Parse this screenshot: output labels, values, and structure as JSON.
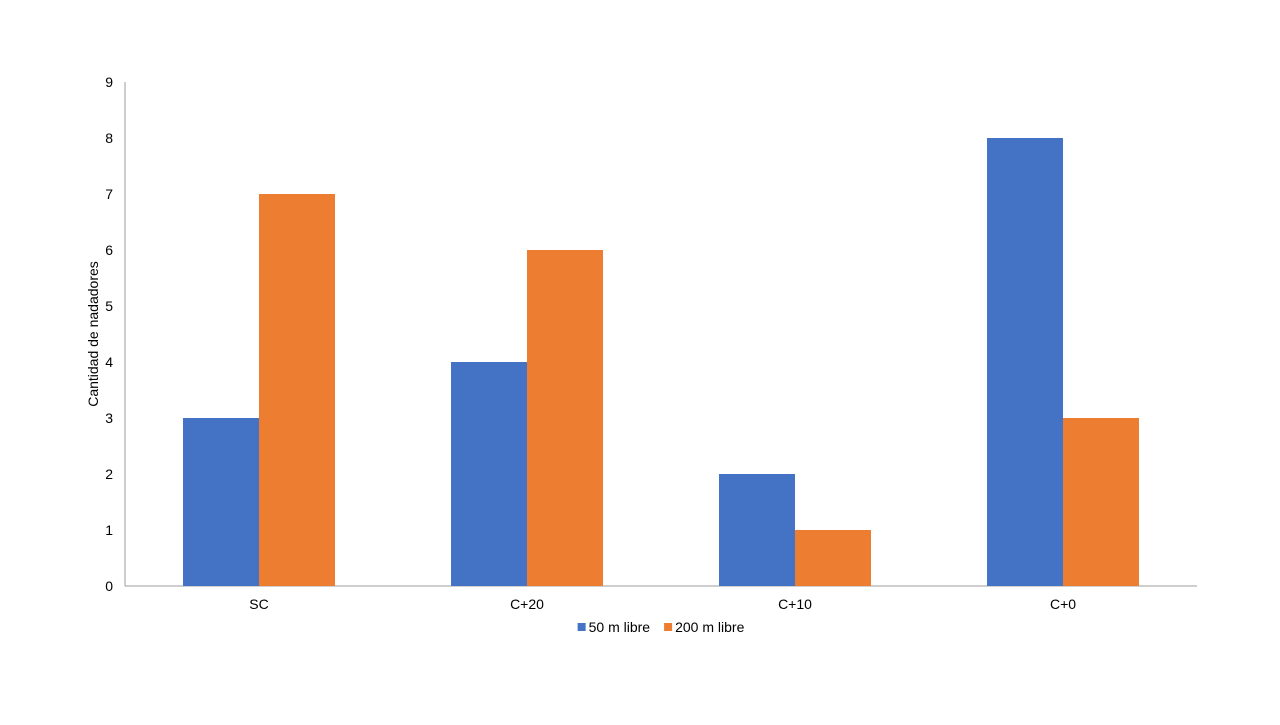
{
  "chart_data": {
    "type": "bar",
    "title": "",
    "xlabel": "",
    "ylabel": "Cantidad de nadadores",
    "categories": [
      "SC",
      "C+20",
      "C+10",
      "C+0"
    ],
    "series": [
      {
        "name": "50 m libre",
        "color": "#4472C4",
        "values": [
          3,
          4,
          2,
          8
        ]
      },
      {
        "name": "200 m libre",
        "color": "#ED7D31",
        "values": [
          7,
          6,
          1,
          3
        ]
      }
    ],
    "ylim": [
      0,
      9
    ],
    "yticks": [
      0,
      1,
      2,
      3,
      4,
      5,
      6,
      7,
      8,
      9
    ],
    "grid": false,
    "legend_position": "bottom"
  }
}
